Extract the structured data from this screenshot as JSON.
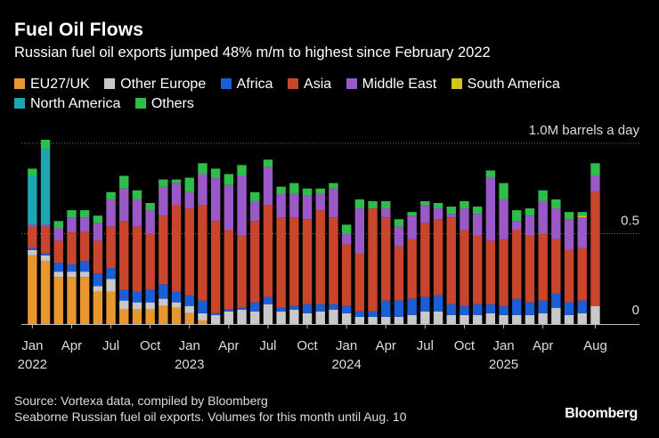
{
  "header": {
    "title": "Fuel Oil Flows",
    "subtitle": "Russian fuel oil exports jumped 48% m/m to highest since February 2022"
  },
  "footer": {
    "source": "Source: Vortexa data, compiled by Bloomberg",
    "note": "Seaborne Russian fuel oil exports. Volumes for this month until Aug. 10",
    "brand": "Bloomberg"
  },
  "chart_data": {
    "type": "bar",
    "stacked": true,
    "unit": "M barrels a day",
    "ylim": [
      0,
      1.0
    ],
    "y_ticks": [
      {
        "value": 1.0,
        "label": "1.0M barrels a day"
      },
      {
        "value": 0.5,
        "label": "0.5"
      },
      {
        "value": 0,
        "label": "0"
      }
    ],
    "x_ticks": [
      {
        "index": 0,
        "label": "Jan",
        "year": "2022"
      },
      {
        "index": 3,
        "label": "Apr",
        "year": ""
      },
      {
        "index": 6,
        "label": "Jul",
        "year": ""
      },
      {
        "index": 9,
        "label": "Oct",
        "year": ""
      },
      {
        "index": 12,
        "label": "Jan",
        "year": "2023"
      },
      {
        "index": 15,
        "label": "Apr",
        "year": ""
      },
      {
        "index": 18,
        "label": "Jul",
        "year": ""
      },
      {
        "index": 21,
        "label": "Oct",
        "year": ""
      },
      {
        "index": 24,
        "label": "Jan",
        "year": "2024"
      },
      {
        "index": 27,
        "label": "Apr",
        "year": ""
      },
      {
        "index": 30,
        "label": "Jul",
        "year": ""
      },
      {
        "index": 33,
        "label": "Oct",
        "year": ""
      },
      {
        "index": 36,
        "label": "Jan",
        "year": "2025"
      },
      {
        "index": 39,
        "label": "Apr",
        "year": ""
      },
      {
        "index": 43,
        "label": "Aug",
        "year": ""
      }
    ],
    "series": [
      {
        "name": "EU27/UK",
        "color": "#e8962e",
        "values": [
          0.38,
          0.35,
          0.26,
          0.26,
          0.26,
          0.18,
          0.18,
          0.08,
          0.08,
          0.08,
          0.1,
          0.09,
          0.06,
          0.02,
          0,
          0,
          0,
          0,
          0,
          0,
          0,
          0,
          0,
          0,
          0,
          0,
          0,
          0,
          0,
          0,
          0,
          0,
          0,
          0,
          0,
          0,
          0,
          0,
          0,
          0,
          0,
          0,
          0,
          0
        ]
      },
      {
        "name": "Other Europe",
        "color": "#c8c8c8",
        "values": [
          0.03,
          0.03,
          0.03,
          0.03,
          0.03,
          0.03,
          0.07,
          0.05,
          0.04,
          0.04,
          0.04,
          0.03,
          0.04,
          0.04,
          0.05,
          0.07,
          0.08,
          0.07,
          0.11,
          0.07,
          0.08,
          0.06,
          0.07,
          0.08,
          0.06,
          0.04,
          0.04,
          0.04,
          0.04,
          0.05,
          0.07,
          0.07,
          0.05,
          0.05,
          0.05,
          0.06,
          0.05,
          0.05,
          0.05,
          0.06,
          0.09,
          0.05,
          0.06,
          0.1
        ]
      },
      {
        "name": "Africa",
        "color": "#1a5fd6",
        "values": [
          0.01,
          0.01,
          0.05,
          0.04,
          0.06,
          0.07,
          0.06,
          0.06,
          0.06,
          0.07,
          0.08,
          0.06,
          0.06,
          0.07,
          0.01,
          0.01,
          0.01,
          0.05,
          0.04,
          0.02,
          0.02,
          0.05,
          0.04,
          0.03,
          0.04,
          0.03,
          0.03,
          0.09,
          0.09,
          0.09,
          0.08,
          0.09,
          0.06,
          0.05,
          0.06,
          0.05,
          0.05,
          0.09,
          0.07,
          0.07,
          0.08,
          0.07,
          0.07,
          0
        ]
      },
      {
        "name": "Asia",
        "color": "#c9462c",
        "values": [
          0.12,
          0.15,
          0.12,
          0.18,
          0.16,
          0.18,
          0.23,
          0.38,
          0.36,
          0.31,
          0.38,
          0.48,
          0.48,
          0.53,
          0.51,
          0.44,
          0.4,
          0.45,
          0.51,
          0.5,
          0.49,
          0.47,
          0.52,
          0.48,
          0.34,
          0.32,
          0.57,
          0.46,
          0.3,
          0.33,
          0.41,
          0.42,
          0.48,
          0.42,
          0.38,
          0.35,
          0.37,
          0.38,
          0.37,
          0.37,
          0.3,
          0.29,
          0.29,
          0.63
        ]
      },
      {
        "name": "Middle East",
        "color": "#9b59c7",
        "values": [
          0.01,
          0.01,
          0.07,
          0.08,
          0.08,
          0.1,
          0.15,
          0.18,
          0.15,
          0.13,
          0.16,
          0.12,
          0.09,
          0.17,
          0.24,
          0.25,
          0.33,
          0.11,
          0.21,
          0.13,
          0.13,
          0.13,
          0.09,
          0.16,
          0.06,
          0.25,
          0,
          0.05,
          0.11,
          0.13,
          0.1,
          0.06,
          0.02,
          0.12,
          0.12,
          0.35,
          0.22,
          0.05,
          0.11,
          0.18,
          0.17,
          0.17,
          0.17,
          0.09
        ]
      },
      {
        "name": "South America",
        "color": "#d4c41a",
        "values": [
          0,
          0,
          0,
          0,
          0,
          0,
          0,
          0,
          0,
          0,
          0,
          0,
          0,
          0,
          0,
          0,
          0,
          0,
          0,
          0,
          0,
          0,
          0,
          0,
          0,
          0,
          0,
          0,
          0,
          0,
          0,
          0,
          0,
          0,
          0,
          0,
          0,
          0,
          0,
          0,
          0,
          0,
          0.01,
          0
        ]
      },
      {
        "name": "North America",
        "color": "#1ea5b2",
        "values": [
          0.27,
          0.42,
          0,
          0,
          0,
          0,
          0,
          0,
          0,
          0,
          0,
          0,
          0,
          0,
          0,
          0,
          0,
          0,
          0,
          0,
          0,
          0,
          0,
          0,
          0,
          0,
          0,
          0,
          0,
          0,
          0,
          0,
          0,
          0,
          0,
          0,
          0,
          0,
          0,
          0,
          0,
          0,
          0,
          0
        ]
      },
      {
        "name": "Others",
        "color": "#2ebd4a",
        "values": [
          0.04,
          0.05,
          0.04,
          0.04,
          0.04,
          0.04,
          0.04,
          0.07,
          0.05,
          0.04,
          0.04,
          0.02,
          0.08,
          0.06,
          0.05,
          0.06,
          0.06,
          0.05,
          0.04,
          0.04,
          0.06,
          0.04,
          0.03,
          0.03,
          0.05,
          0.05,
          0.04,
          0.04,
          0.04,
          0.02,
          0.02,
          0.03,
          0.04,
          0.04,
          0.04,
          0.04,
          0.09,
          0.06,
          0.04,
          0.06,
          0.05,
          0.04,
          0.02,
          0.07
        ]
      }
    ]
  }
}
